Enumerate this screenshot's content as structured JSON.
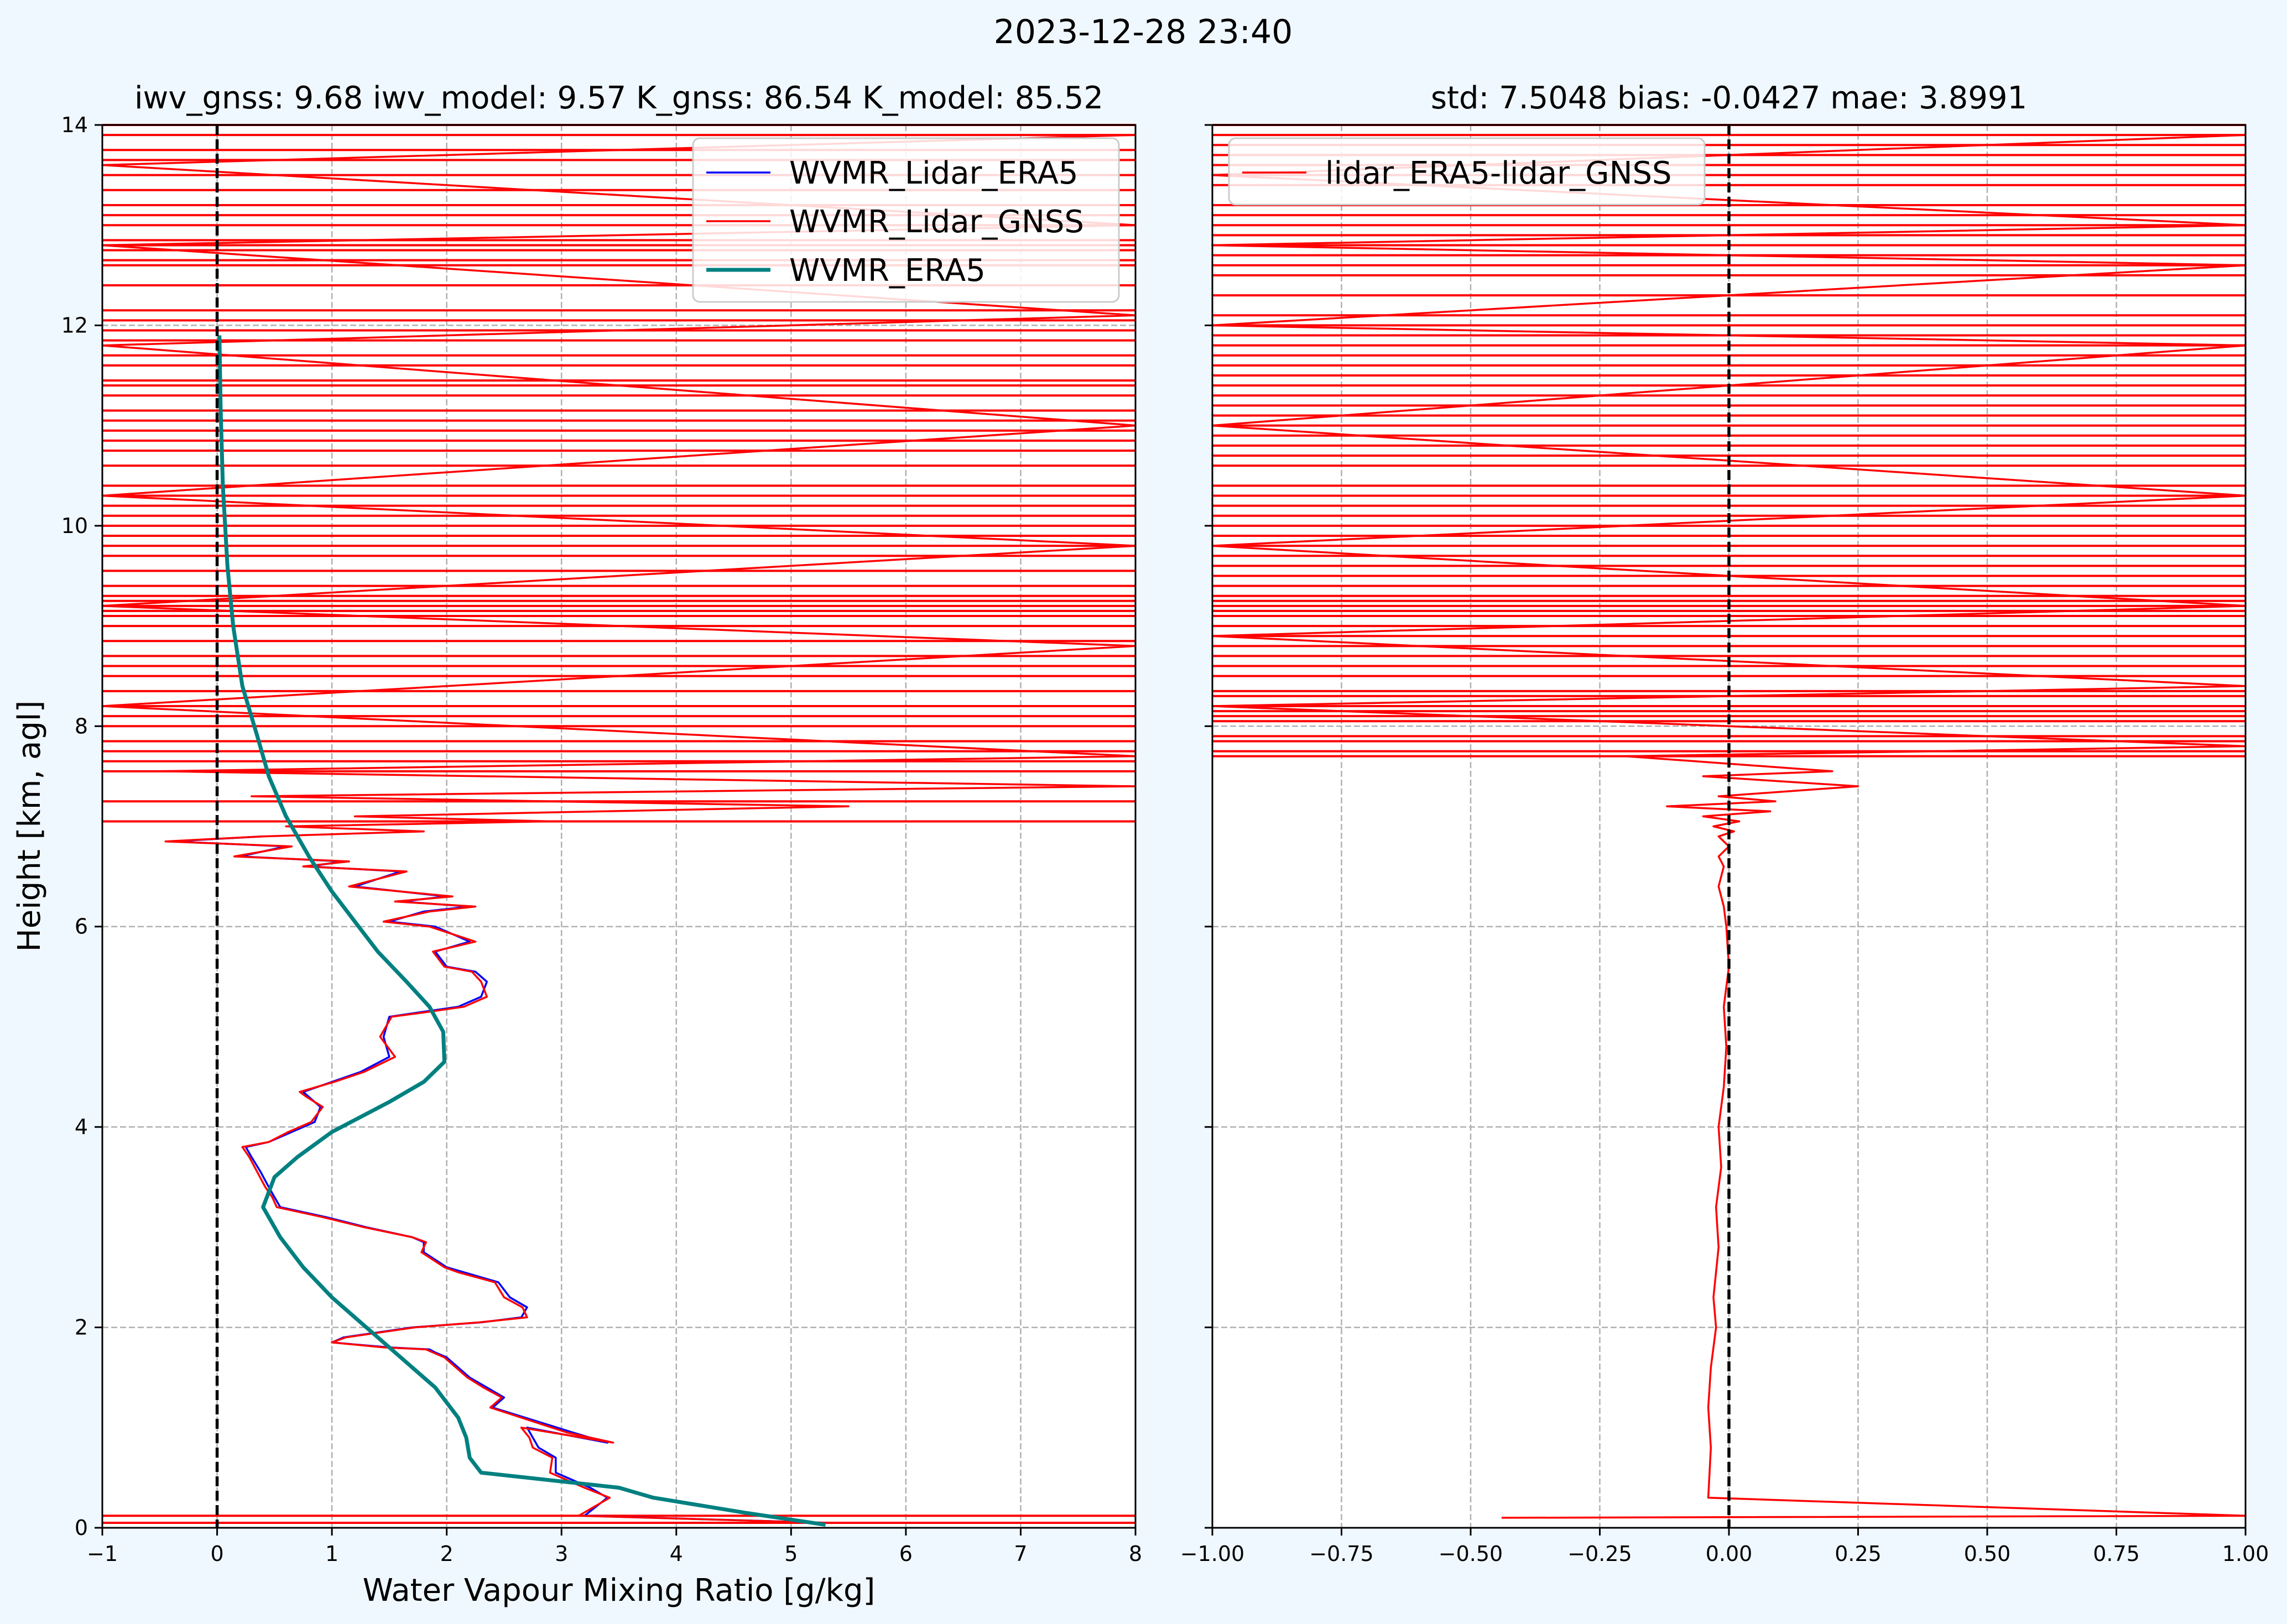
{
  "figure": {
    "suptitle": "2023-12-28 23:40",
    "background": "#f0f8ff"
  },
  "chart_data": [
    {
      "type": "line",
      "title": "iwv_gnss: 9.68    iwv_model: 9.57    K_gnss: 86.54    K_model: 85.52",
      "xlabel": "Water Vapour Mixing Ratio [g/kg]",
      "ylabel": "Height [km, agl]",
      "xlim": [
        -1,
        8
      ],
      "ylim": [
        0,
        14
      ],
      "xticks": [
        -1,
        0,
        1,
        2,
        3,
        4,
        5,
        6,
        7,
        8
      ],
      "yticks": [
        0,
        2,
        4,
        6,
        8,
        10,
        12,
        14
      ],
      "grid": true,
      "legend_position": "top-right",
      "vline": 0,
      "series": [
        {
          "name": "WVMR_Lidar_ERA5",
          "color": "#0000ff",
          "x": [
            5.3,
            3.2,
            3.4,
            3.25,
            2.95,
            2.95,
            2.8,
            2.75,
            2.7,
            3.4,
            3.1,
            2.4,
            2.5,
            2.35,
            2.2,
            2.1,
            2.0,
            1.9,
            1.85,
            1.5,
            1.0,
            1.1,
            1.7,
            2.3,
            2.65,
            2.7,
            2.55,
            2.45,
            2.15,
            2.0,
            1.8,
            1.8,
            1.7,
            1.3,
            0.95,
            0.55,
            0.5,
            0.45,
            0.38,
            0.3,
            0.25,
            0.45,
            0.65,
            0.85,
            0.9,
            0.8,
            0.75,
            1.0,
            1.25,
            1.5,
            1.45,
            1.5,
            1.8,
            2.1,
            2.3,
            2.35,
            2.25,
            2.0,
            1.9,
            2.2,
            1.9,
            1.5,
            1.8,
            2.2,
            1.6,
            2.0,
            1.2,
            1.6,
            0.8,
            1.1,
            0.2,
            0.6,
            -0.4,
            0.4
          ],
          "y": [
            0.05,
            0.12,
            0.3,
            0.4,
            0.55,
            0.7,
            0.8,
            0.9,
            1.0,
            0.85,
            0.95,
            1.2,
            1.3,
            1.4,
            1.5,
            1.6,
            1.7,
            1.75,
            1.78,
            1.8,
            1.85,
            1.9,
            2.0,
            2.05,
            2.1,
            2.2,
            2.3,
            2.45,
            2.55,
            2.6,
            2.75,
            2.85,
            2.9,
            3.0,
            3.1,
            3.2,
            3.3,
            3.4,
            3.55,
            3.7,
            3.8,
            3.85,
            3.95,
            4.05,
            4.2,
            4.3,
            4.35,
            4.45,
            4.55,
            4.7,
            4.9,
            5.1,
            5.15,
            5.2,
            5.3,
            5.45,
            5.55,
            5.6,
            5.75,
            5.85,
            6.0,
            6.05,
            6.15,
            6.2,
            6.25,
            6.3,
            6.4,
            6.55,
            6.6,
            6.65,
            6.7,
            6.8,
            6.85,
            6.9
          ]
        },
        {
          "name": "WVMR_Lidar_GNSS",
          "color": "#ff0000",
          "x": [
            5.3,
            3.15,
            3.42,
            3.2,
            2.9,
            2.92,
            2.75,
            2.72,
            2.65,
            3.45,
            3.05,
            2.38,
            2.48,
            2.32,
            2.18,
            2.08,
            1.98,
            1.88,
            1.82,
            1.45,
            1.0,
            1.12,
            1.72,
            2.28,
            2.7,
            2.66,
            2.5,
            2.42,
            2.1,
            1.98,
            1.78,
            1.82,
            1.7,
            1.28,
            0.92,
            0.52,
            0.48,
            0.42,
            0.35,
            0.28,
            0.22,
            0.45,
            0.62,
            0.82,
            0.92,
            0.78,
            0.72,
            1.02,
            1.28,
            1.55,
            1.42,
            1.52,
            1.85,
            2.15,
            2.35,
            2.3,
            2.22,
            1.98,
            1.88,
            2.25,
            1.85,
            1.45,
            1.85,
            2.25,
            1.55,
            2.05,
            1.15,
            1.65,
            0.75,
            1.15,
            0.15,
            0.65,
            -0.45,
            0.4,
            1.8,
            0.6,
            2.9,
            1.2,
            5.5,
            0.3,
            8.0,
            -0.5,
            8.0,
            -1.0,
            8.0,
            -1.0,
            8.0,
            -1.0,
            8.0,
            -1.0,
            8.0,
            -1.0,
            8.0,
            -1.0,
            8.0
          ],
          "y": [
            0.05,
            0.12,
            0.3,
            0.4,
            0.55,
            0.7,
            0.8,
            0.9,
            1.0,
            0.85,
            0.95,
            1.2,
            1.3,
            1.4,
            1.5,
            1.6,
            1.7,
            1.75,
            1.78,
            1.8,
            1.85,
            1.9,
            2.0,
            2.05,
            2.1,
            2.2,
            2.3,
            2.45,
            2.55,
            2.6,
            2.75,
            2.85,
            2.9,
            3.0,
            3.1,
            3.2,
            3.3,
            3.4,
            3.55,
            3.7,
            3.8,
            3.85,
            3.95,
            4.05,
            4.2,
            4.3,
            4.35,
            4.45,
            4.55,
            4.7,
            4.9,
            5.1,
            5.15,
            5.2,
            5.3,
            5.45,
            5.55,
            5.6,
            5.75,
            5.85,
            6.0,
            6.05,
            6.15,
            6.2,
            6.25,
            6.3,
            6.4,
            6.55,
            6.6,
            6.65,
            6.7,
            6.8,
            6.85,
            6.9,
            6.95,
            7.0,
            7.05,
            7.1,
            7.2,
            7.3,
            7.4,
            7.55,
            7.7,
            8.2,
            8.8,
            9.2,
            9.8,
            10.3,
            11.0,
            11.8,
            12.1,
            12.8,
            13.0,
            13.6,
            13.9
          ]
        },
        {
          "name": "WVMR_ERA5",
          "color": "#008080",
          "x": [
            5.3,
            4.6,
            3.8,
            3.5,
            2.3,
            2.2,
            2.17,
            2.1,
            1.9,
            1.6,
            1.3,
            1.0,
            0.75,
            0.55,
            0.4,
            0.5,
            0.7,
            1.0,
            1.5,
            1.8,
            1.98,
            1.97,
            1.85,
            1.65,
            1.4,
            1.2,
            1.0,
            0.8,
            0.6,
            0.45,
            0.35,
            0.22,
            0.14,
            0.09,
            0.05,
            0.03,
            0.02
          ],
          "y": [
            0.03,
            0.15,
            0.3,
            0.4,
            0.55,
            0.7,
            0.9,
            1.1,
            1.4,
            1.7,
            2.0,
            2.3,
            2.6,
            2.9,
            3.2,
            3.5,
            3.7,
            3.95,
            4.25,
            4.45,
            4.65,
            4.95,
            5.2,
            5.45,
            5.75,
            6.05,
            6.35,
            6.7,
            7.1,
            7.5,
            7.9,
            8.4,
            9.0,
            9.6,
            10.4,
            11.2,
            11.9
          ]
        }
      ]
    },
    {
      "type": "line",
      "title": "std: 7.5048     bias: -0.0427     mae: 3.8991",
      "xlabel": "",
      "ylabel": "",
      "xlim": [
        -1.0,
        1.0
      ],
      "ylim": [
        0,
        14
      ],
      "xticks": [
        -1.0,
        -0.75,
        -0.5,
        -0.25,
        0.0,
        0.25,
        0.5,
        0.75,
        1.0
      ],
      "xtick_labels": [
        "−1.00",
        "−0.75",
        "−0.50",
        "−0.25",
        "0.00",
        "0.25",
        "0.50",
        "0.75",
        "1.00"
      ],
      "yticks": [
        0,
        2,
        4,
        6,
        8,
        10,
        12,
        14
      ],
      "grid": true,
      "legend_position": "top-left",
      "vline": 0,
      "series": [
        {
          "name": "lidar_ERA5-lidar_GNSS",
          "color": "#ff0000",
          "x": [
            -0.44,
            1.0,
            -0.04,
            -0.035,
            -0.04,
            -0.035,
            -0.03,
            -0.025,
            -0.03,
            -0.02,
            -0.025,
            -0.015,
            -0.02,
            -0.01,
            -0.005,
            -0.01,
            0.0,
            -0.005,
            -0.01,
            -0.02,
            -0.015,
            -0.01,
            -0.02,
            -0.01,
            0.0,
            -0.02,
            0.01,
            -0.03,
            0.02,
            -0.05,
            0.08,
            -0.12,
            0.09,
            -0.02,
            0.25,
            -0.05,
            0.2,
            -0.2,
            1.0,
            -1.0,
            1.0,
            -1.0,
            1.0,
            -1.0,
            1.0,
            -1.0,
            1.0,
            -1.0,
            1.0,
            -1.0,
            1.0,
            -1.0,
            1.0
          ],
          "y": [
            0.1,
            0.12,
            0.3,
            0.8,
            1.2,
            1.6,
            1.8,
            2.0,
            2.3,
            2.8,
            3.2,
            3.6,
            4.0,
            4.4,
            4.8,
            5.2,
            5.6,
            6.0,
            6.2,
            6.4,
            6.5,
            6.6,
            6.7,
            6.75,
            6.8,
            6.9,
            6.95,
            7.0,
            7.05,
            7.1,
            7.15,
            7.2,
            7.25,
            7.3,
            7.4,
            7.5,
            7.55,
            7.7,
            7.8,
            8.2,
            8.4,
            8.9,
            9.2,
            9.8,
            10.3,
            11.0,
            11.8,
            12.0,
            12.6,
            12.8,
            13.0,
            13.5,
            13.9
          ]
        }
      ]
    }
  ],
  "hlines_left": {
    "color": "#ff0000",
    "comment_free_levels": [
      0.05,
      0.12,
      7.05,
      7.25,
      7.55,
      7.65,
      7.75,
      7.85,
      8.0,
      8.1,
      8.2,
      8.35,
      8.5,
      8.6,
      8.7,
      8.85,
      9.0,
      9.1,
      9.15,
      9.2,
      9.25,
      9.3,
      9.4,
      9.55,
      9.7,
      9.8,
      9.9,
      10.0,
      10.1,
      10.2,
      10.3,
      10.4,
      10.6,
      10.75,
      10.85,
      10.95,
      11.05,
      11.15,
      11.3,
      11.4,
      11.45,
      11.6,
      11.7,
      11.85,
      11.95,
      12.05,
      12.15,
      12.4,
      12.6,
      12.65,
      12.75,
      12.8,
      12.85,
      13.0,
      13.1,
      13.2,
      13.35,
      13.5,
      13.65,
      13.75,
      13.9,
      14.0
    ]
  },
  "hlines_right": {
    "color": "#ff0000",
    "levels": [
      7.7,
      7.75,
      7.85,
      7.9,
      8.05,
      8.1,
      8.15,
      8.2,
      8.3,
      8.35,
      8.5,
      8.6,
      8.7,
      8.8,
      8.9,
      9.0,
      9.1,
      9.15,
      9.2,
      9.25,
      9.3,
      9.4,
      9.5,
      9.6,
      9.7,
      9.8,
      9.9,
      10.0,
      10.1,
      10.2,
      10.3,
      10.4,
      10.6,
      10.7,
      10.8,
      10.9,
      11.0,
      11.1,
      11.2,
      11.3,
      11.4,
      11.5,
      11.6,
      11.7,
      11.8,
      11.9,
      12.0,
      12.1,
      12.3,
      12.5,
      12.6,
      12.7,
      12.8,
      12.9,
      13.0,
      13.1,
      13.2,
      13.4,
      13.5,
      13.6,
      13.7,
      13.8,
      13.9,
      14.0
    ]
  }
}
